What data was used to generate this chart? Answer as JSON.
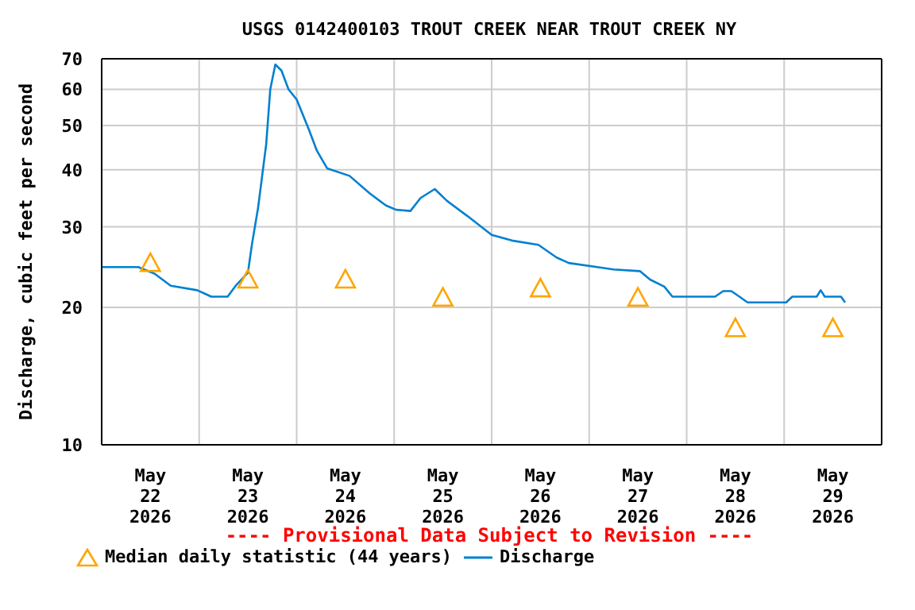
{
  "chart_data": {
    "type": "line",
    "title": "USGS 0142400103 TROUT CREEK NEAR TROUT CREEK NY",
    "ylabel": "Discharge, cubic feet per second",
    "annotations": [
      "---- Provisional Data Subject to Revision ----"
    ],
    "xlim": [
      "2026-05-22T00:00",
      "2026-05-30T00:00"
    ],
    "xticks": [
      {
        "value": "2026-05-22T12:00",
        "label": "May\n22\n2026"
      },
      {
        "value": "2026-05-23T00:00",
        "label": null
      },
      {
        "value": "2026-05-23T12:00",
        "label": "May\n23\n2026"
      },
      {
        "value": "2026-05-24T00:00",
        "label": null
      },
      {
        "value": "2026-05-24T12:00",
        "label": "May\n24\n2026"
      },
      {
        "value": "2026-05-25T00:00",
        "label": null
      },
      {
        "value": "2026-05-25T12:00",
        "label": "May\n25\n2026"
      },
      {
        "value": "2026-05-26T00:00",
        "label": null
      },
      {
        "value": "2026-05-26T12:00",
        "label": "May\n26\n2026"
      },
      {
        "value": "2026-05-27T00:00",
        "label": null
      },
      {
        "value": "2026-05-27T12:00",
        "label": "May\n27\n2026"
      },
      {
        "value": "2026-05-28T00:00",
        "label": null
      },
      {
        "value": "2026-05-28T12:00",
        "label": "May\n28\n2026"
      },
      {
        "value": "2026-05-29T00:00",
        "label": null
      },
      {
        "value": "2026-05-29T12:00",
        "label": "May\n29\n2026"
      }
    ],
    "ylim": [
      10,
      70
    ],
    "yticks": [
      10,
      20,
      30,
      40,
      50,
      60,
      70
    ],
    "log": "y",
    "grid": true,
    "legend": "bottom",
    "series": [
      {
        "name": "Median daily statistic (44 years)",
        "type": "scatter",
        "marker": "triangle",
        "color": "#ffa500",
        "x": [
          "2026-05-22T12:00",
          "2026-05-23T12:00",
          "2026-05-24T12:00",
          "2026-05-25T12:00",
          "2026-05-26T12:00",
          "2026-05-27T12:00",
          "2026-05-28T12:00",
          "2026-05-29T12:00"
        ],
        "values": [
          25,
          23,
          23,
          21,
          22,
          21,
          18,
          18
        ]
      },
      {
        "name": "Discharge",
        "color": "#0080d0",
        "x": [
          "2026-05-22T00:00",
          "2026-05-22T09:00",
          "2026-05-22T13:00",
          "2026-05-22T17:00",
          "2026-05-22T23:30",
          "2026-05-23T03:00",
          "2026-05-23T07:00",
          "2026-05-23T09:00",
          "2026-05-23T12:00",
          "2026-05-23T13:00",
          "2026-05-23T14:30",
          "2026-05-23T16:30",
          "2026-05-23T17:30",
          "2026-05-23T18:45",
          "2026-05-23T20:15",
          "2026-05-23T22:00",
          "2026-05-24T00:00",
          "2026-05-24T03:00",
          "2026-05-24T05:00",
          "2026-05-24T07:30",
          "2026-05-24T13:00",
          "2026-05-24T18:00",
          "2026-05-24T22:00",
          "2026-05-25T00:30",
          "2026-05-25T04:00",
          "2026-05-25T06:30",
          "2026-05-25T10:00",
          "2026-05-25T13:00",
          "2026-05-25T18:00",
          "2026-05-26T00:00",
          "2026-05-26T05:00",
          "2026-05-26T11:30",
          "2026-05-26T16:00",
          "2026-05-26T19:00",
          "2026-05-27T06:00",
          "2026-05-27T12:30",
          "2026-05-27T15:00",
          "2026-05-27T18:30",
          "2026-05-27T20:30",
          "2026-05-28T07:00",
          "2026-05-28T09:00",
          "2026-05-28T11:00",
          "2026-05-28T13:00",
          "2026-05-28T15:00",
          "2026-05-29T00:30",
          "2026-05-29T02:00",
          "2026-05-29T08:00",
          "2026-05-29T09:00",
          "2026-05-29T10:00",
          "2026-05-29T14:00",
          "2026-05-29T15:00"
        ],
        "values": [
          24.5,
          24.5,
          23.7,
          22.3,
          21.8,
          21.1,
          21.1,
          22.3,
          23.8,
          27.5,
          33,
          45.5,
          60,
          68,
          66,
          60,
          57,
          49,
          44,
          40.3,
          38.8,
          35.5,
          33.4,
          32.7,
          32.5,
          34.7,
          36.3,
          34.2,
          31.7,
          28.8,
          28,
          27.4,
          25.7,
          25,
          24.2,
          24,
          23,
          22.2,
          21.1,
          21.1,
          21.7,
          21.7,
          21.1,
          20.5,
          20.5,
          21.1,
          21.1,
          21.8,
          21.1,
          21.1,
          20.5
        ]
      }
    ]
  }
}
